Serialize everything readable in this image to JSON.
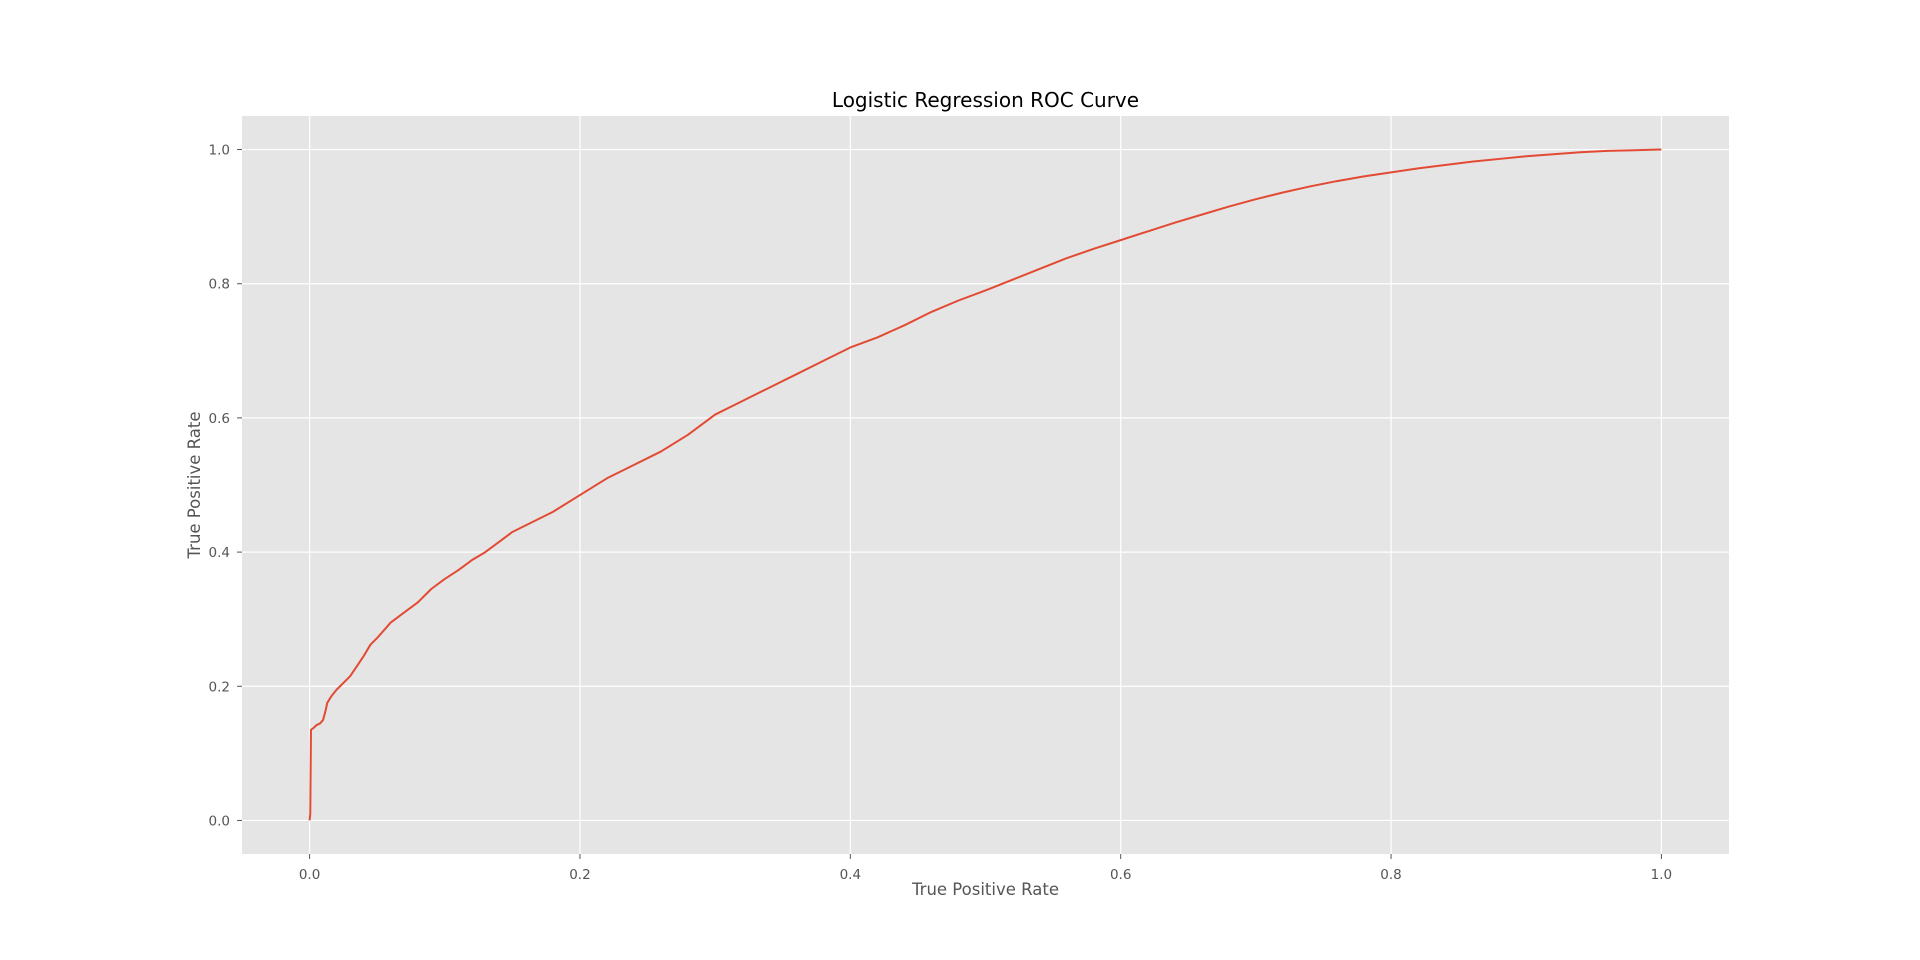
{
  "colors": {
    "background": "#ffffff",
    "plot_background": "#e5e5e5",
    "grid": "#ffffff",
    "line": "#e24a33",
    "text": "#555555",
    "title": "#000000"
  },
  "chart_data": {
    "type": "line",
    "title": "Logistic Regression ROC Curve",
    "xlabel": "True Positive Rate",
    "ylabel": "True Positive Rate",
    "xlim": [
      -0.05,
      1.05
    ],
    "ylim": [
      -0.05,
      1.05
    ],
    "grid": true,
    "legend": "none",
    "x_ticks": [
      "0.0",
      "0.2",
      "0.4",
      "0.6",
      "0.8",
      "1.0"
    ],
    "y_ticks": [
      "0.0",
      "0.2",
      "0.4",
      "0.6",
      "0.8",
      "1.0"
    ],
    "series": [
      {
        "color": "#e24a33",
        "x": [
          0,
          0.0005,
          0.001,
          0.001,
          0.003,
          0.005,
          0.008,
          0.01,
          0.012,
          0.013,
          0.016,
          0.02,
          0.025,
          0.03,
          0.035,
          0.04,
          0.045,
          0.05,
          0.06,
          0.07,
          0.08,
          0.09,
          0.1,
          0.11,
          0.12,
          0.13,
          0.14,
          0.15,
          0.16,
          0.18,
          0.2,
          0.22,
          0.24,
          0.26,
          0.28,
          0.3,
          0.32,
          0.34,
          0.36,
          0.38,
          0.4,
          0.42,
          0.44,
          0.46,
          0.48,
          0.5,
          0.52,
          0.54,
          0.56,
          0.58,
          0.6,
          0.62,
          0.64,
          0.66,
          0.68,
          0.7,
          0.72,
          0.74,
          0.76,
          0.78,
          0.8,
          0.82,
          0.84,
          0.86,
          0.88,
          0.9,
          0.92,
          0.94,
          0.96,
          0.98,
          1.0
        ],
        "y": [
          0,
          0.01,
          0.13,
          0.135,
          0.138,
          0.142,
          0.145,
          0.15,
          0.165,
          0.175,
          0.185,
          0.195,
          0.205,
          0.215,
          0.23,
          0.245,
          0.262,
          0.272,
          0.295,
          0.31,
          0.325,
          0.345,
          0.36,
          0.373,
          0.388,
          0.4,
          0.415,
          0.43,
          0.44,
          0.46,
          0.485,
          0.51,
          0.53,
          0.55,
          0.575,
          0.605,
          0.625,
          0.645,
          0.665,
          0.685,
          0.705,
          0.72,
          0.738,
          0.758,
          0.775,
          0.79,
          0.806,
          0.822,
          0.838,
          0.852,
          0.865,
          0.878,
          0.891,
          0.903,
          0.915,
          0.926,
          0.936,
          0.945,
          0.953,
          0.96,
          0.966,
          0.972,
          0.977,
          0.982,
          0.986,
          0.99,
          0.993,
          0.996,
          0.998,
          0.999,
          1.0
        ]
      }
    ]
  }
}
